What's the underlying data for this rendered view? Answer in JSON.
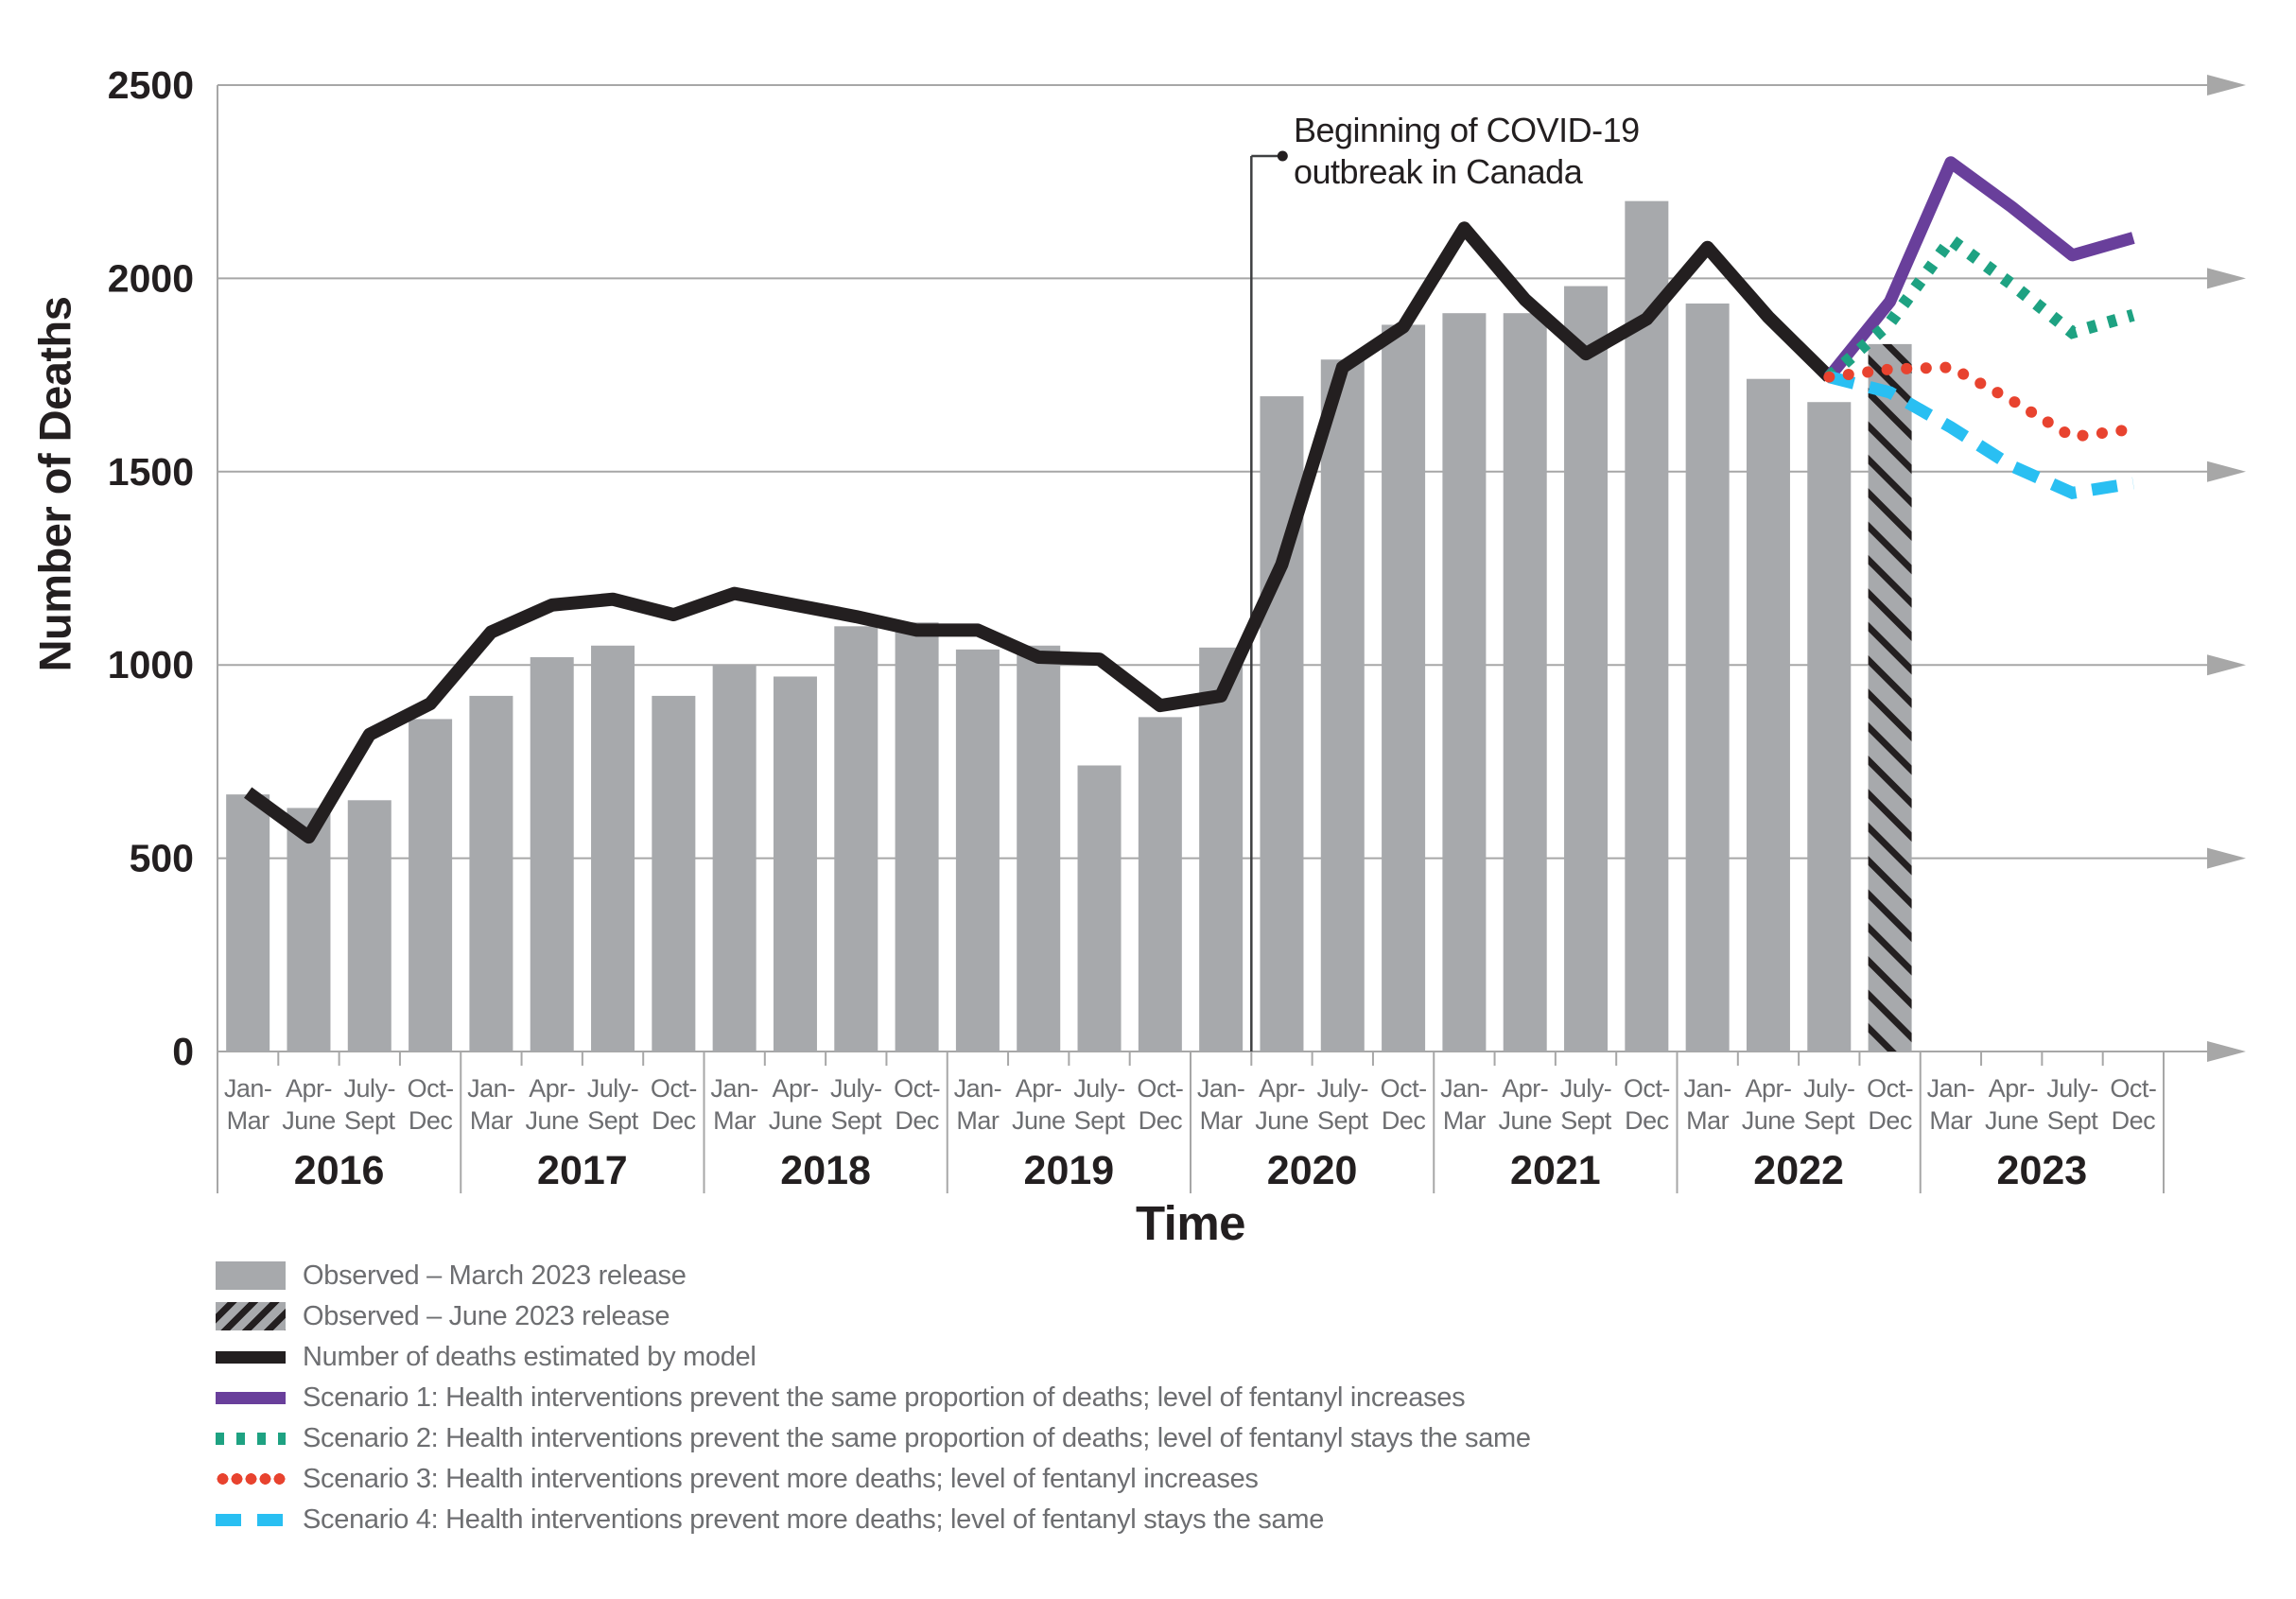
{
  "chart_data": {
    "type": "bar",
    "title": "",
    "y_axis": {
      "title": "Number of Deaths",
      "ticks": [
        0,
        500,
        1000,
        1500,
        2000,
        2500
      ],
      "ylim": [
        0,
        2500
      ]
    },
    "x_axis": {
      "title": "Time",
      "years": [
        "2016",
        "2017",
        "2018",
        "2019",
        "2020",
        "2021",
        "2022",
        "2023"
      ],
      "quarter_labels": [
        [
          "Jan-",
          "Mar"
        ],
        [
          "Apr-",
          "June"
        ],
        [
          "July-",
          "Sept"
        ],
        [
          "Oct-",
          "Dec"
        ]
      ],
      "quarters_per_year": 4
    },
    "annotation": {
      "line1": "Beginning of COVID-19",
      "line2": "outbreak in Canada",
      "points_to": "boundary between Jan-Mar 2020 and Apr-June 2020",
      "boundary_index": 17
    },
    "series": [
      {
        "name": "Observed – March 2023 release",
        "type": "bar",
        "color": "#a7a9ac",
        "start_index": 0,
        "values": [
          665,
          630,
          650,
          860,
          920,
          1020,
          1050,
          920,
          1000,
          970,
          1100,
          1110,
          1040,
          1050,
          740,
          865,
          1045,
          1695,
          1790,
          1880,
          1910,
          1910,
          1980,
          2200,
          1935,
          1740,
          1680
        ]
      },
      {
        "name": "Observed – June 2023 release",
        "type": "bar-hatched",
        "color": "#a7a9ac",
        "hatch_color": "#231f20",
        "start_index": 27,
        "values": [
          1830
        ]
      },
      {
        "name": "Number of deaths estimated by model",
        "type": "line",
        "color": "#231f20",
        "start_index": 0,
        "values": [
          670,
          555,
          820,
          900,
          1085,
          1155,
          1170,
          1130,
          1185,
          1155,
          1125,
          1090,
          1090,
          1020,
          1015,
          895,
          920,
          1260,
          1770,
          1875,
          2130,
          1945,
          1805,
          1895,
          2080,
          1900,
          1745
        ]
      },
      {
        "name": "Scenario 1: Health interventions prevent the same proportion of deaths; level of fentanyl increases",
        "type": "line-solid",
        "color": "#693f9b",
        "start_index": 26,
        "values": [
          1745,
          1940,
          2300,
          2185,
          2060,
          2105
        ]
      },
      {
        "name": "Scenario 2: Health interventions prevent the same proportion of deaths; level of fentanyl stays the same",
        "type": "line-square-dotted",
        "color": "#1ea282",
        "start_index": 26,
        "values": [
          1745,
          1885,
          2100,
          1985,
          1860,
          1905
        ]
      },
      {
        "name": "Scenario 3: Health interventions prevent more deaths; level of fentanyl increases",
        "type": "line-round-dotted",
        "color": "#e8432f",
        "start_index": 26,
        "values": [
          1745,
          1765,
          1770,
          1685,
          1590,
          1610
        ]
      },
      {
        "name": "Scenario 4: Health interventions prevent more deaths; level of fentanyl stays the same",
        "type": "line-dashed",
        "color": "#29bff2",
        "start_index": 26,
        "values": [
          1745,
          1705,
          1615,
          1515,
          1445,
          1470
        ]
      }
    ],
    "colors": {
      "grid": "#a7a7a7",
      "bar_gray": "#a7a9ac",
      "hatch_stripe": "#231f20",
      "model_line": "#231f20",
      "scenario1_purple": "#693f9b",
      "scenario2_green": "#1ea282",
      "scenario3_red": "#e8432f",
      "scenario4_cyan": "#29bff2",
      "quarter_label_gray": "#6d6e71",
      "text_black": "#231f20"
    },
    "grid": "horizontal lines with right arrowheads",
    "legend_position": "bottom-left"
  },
  "legend": {
    "items": [
      {
        "marker": "gray-box",
        "label": "Observed – March 2023 release"
      },
      {
        "marker": "hatch-box",
        "label": "Observed – June 2023 release"
      },
      {
        "marker": "black-line",
        "label": "Number of deaths estimated by model"
      },
      {
        "marker": "purple-line",
        "label": "Scenario 1: Health interventions prevent the same proportion of deaths; level of fentanyl increases"
      },
      {
        "marker": "green-dotted",
        "label": "Scenario 2: Health interventions prevent the same proportion of deaths; level of fentanyl stays the same"
      },
      {
        "marker": "red-dotted",
        "label": "Scenario 3: Health interventions prevent more deaths; level of fentanyl increases"
      },
      {
        "marker": "cyan-dashed",
        "label": "Scenario 4: Health interventions prevent more deaths; level of fentanyl stays the same"
      }
    ]
  }
}
